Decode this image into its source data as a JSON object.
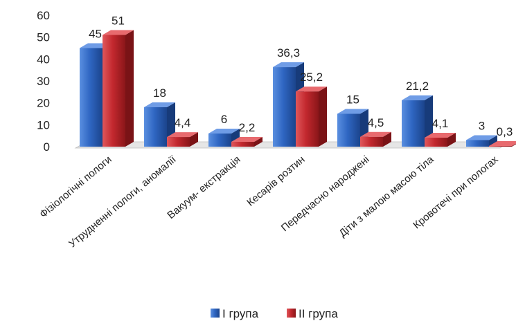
{
  "chart_data": {
    "type": "bar",
    "style": "3d-clustered",
    "categories": [
      "Фізіологічні пологи",
      "Утрудненні пологи, аномалії",
      "Вакуум- екстракція",
      "Кесарів розтин",
      "Передчасно народжені",
      "Діти з малою масою тіла",
      "Кровотечі при пологах"
    ],
    "series": [
      {
        "name": "І група",
        "values": [
          45,
          18,
          6,
          36.3,
          15,
          21.2,
          3
        ],
        "labels": [
          "45",
          "18",
          "6",
          "36,3",
          "15",
          "21,2",
          "3"
        ],
        "color": "#2e62b8"
      },
      {
        "name": "ІІ група",
        "values": [
          51,
          4.4,
          2.2,
          25.2,
          4.5,
          4.1,
          0.3
        ],
        "labels": [
          "51",
          "4,4",
          "2,2",
          "25,2",
          "4,5",
          "4,1",
          "0,3"
        ],
        "color": "#c0272d"
      }
    ],
    "yticks": [
      "0",
      "10",
      "20",
      "30",
      "40",
      "50",
      "60"
    ],
    "ylim": [
      0,
      60
    ],
    "grid": false,
    "legend_position": "bottom",
    "title": "",
    "xlabel": "",
    "ylabel": ""
  }
}
